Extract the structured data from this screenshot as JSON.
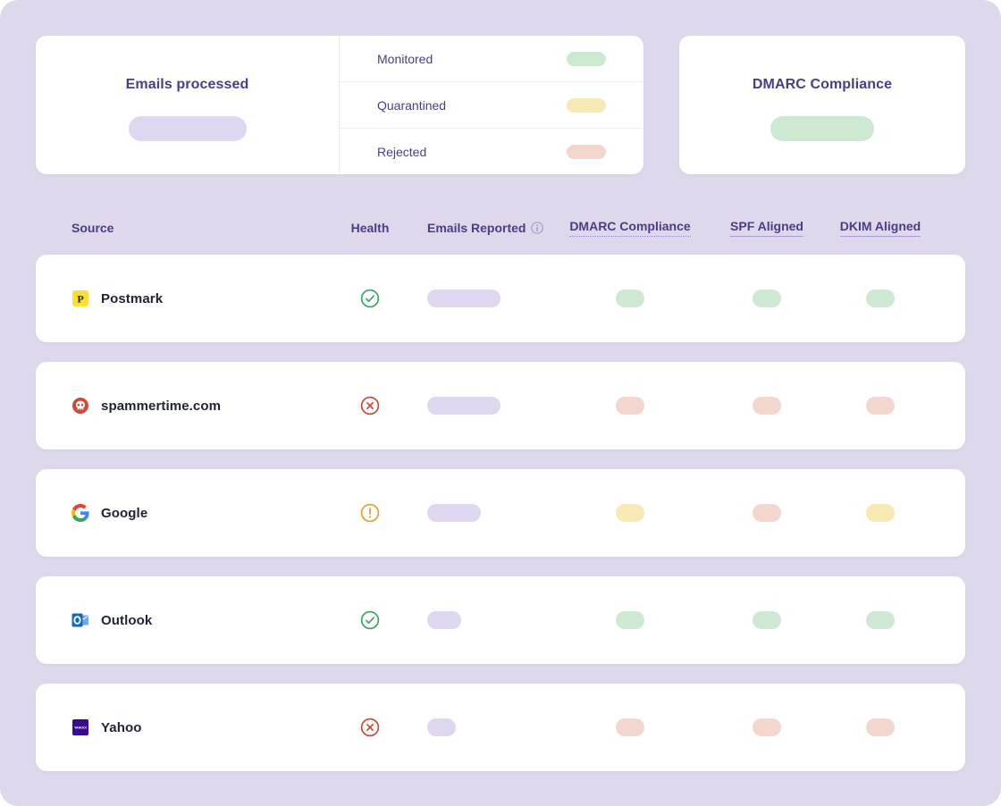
{
  "page": {
    "background": "#DED8EC"
  },
  "summary": {
    "emails_processed": {
      "title": "Emails processed",
      "value_pill_color": "#DFD6F0"
    },
    "legend": [
      {
        "label": "Monitored",
        "pill_color": "#CDE9D2"
      },
      {
        "label": "Quarantined",
        "pill_color": "#F8E8B4"
      },
      {
        "label": "Rejected",
        "pill_color": "#F3D6CE"
      }
    ],
    "dmarc_compliance": {
      "title": "DMARC Compliance",
      "value_pill_color": "#CDE9D2"
    }
  },
  "table": {
    "columns": [
      {
        "label": "Source"
      },
      {
        "label": "Health"
      },
      {
        "label": "Emails Reported",
        "has_info_icon": true
      },
      {
        "label": "DMARC Compliance",
        "underline": "dotted"
      },
      {
        "label": "SPF Aligned",
        "underline": "solid"
      },
      {
        "label": "DKIM Aligned",
        "underline": "solid"
      }
    ],
    "rows": [
      {
        "source": "Postmark",
        "icon": "postmark-logo",
        "health": "ok",
        "emails_reported_width": 82,
        "dmarc": "good",
        "spf": "good",
        "dkim": "good"
      },
      {
        "source": "spammertime.com",
        "icon": "skull-logo",
        "health": "error",
        "emails_reported_width": 82,
        "dmarc": "bad",
        "spf": "bad",
        "dkim": "bad"
      },
      {
        "source": "Google",
        "icon": "google-logo",
        "health": "warning",
        "emails_reported_width": 60,
        "dmarc": "warn",
        "spf": "bad",
        "dkim": "warn"
      },
      {
        "source": "Outlook",
        "icon": "outlook-logo",
        "health": "ok",
        "emails_reported_width": 38,
        "dmarc": "good",
        "spf": "good",
        "dkim": "good"
      },
      {
        "source": "Yahoo",
        "icon": "yahoo-logo",
        "health": "error",
        "emails_reported_width": 32,
        "dmarc": "bad",
        "spf": "bad",
        "dkim": "bad"
      }
    ]
  },
  "colors": {
    "metric_pill": "#DFD6F0",
    "status": {
      "good": "#CDE9D2",
      "warn": "#F8E8B4",
      "bad": "#F3D6CE"
    },
    "health": {
      "ok": "#3FA664",
      "warning": "#E0A233",
      "error": "#CC4B38"
    },
    "info_icon": "#A89BCB"
  }
}
